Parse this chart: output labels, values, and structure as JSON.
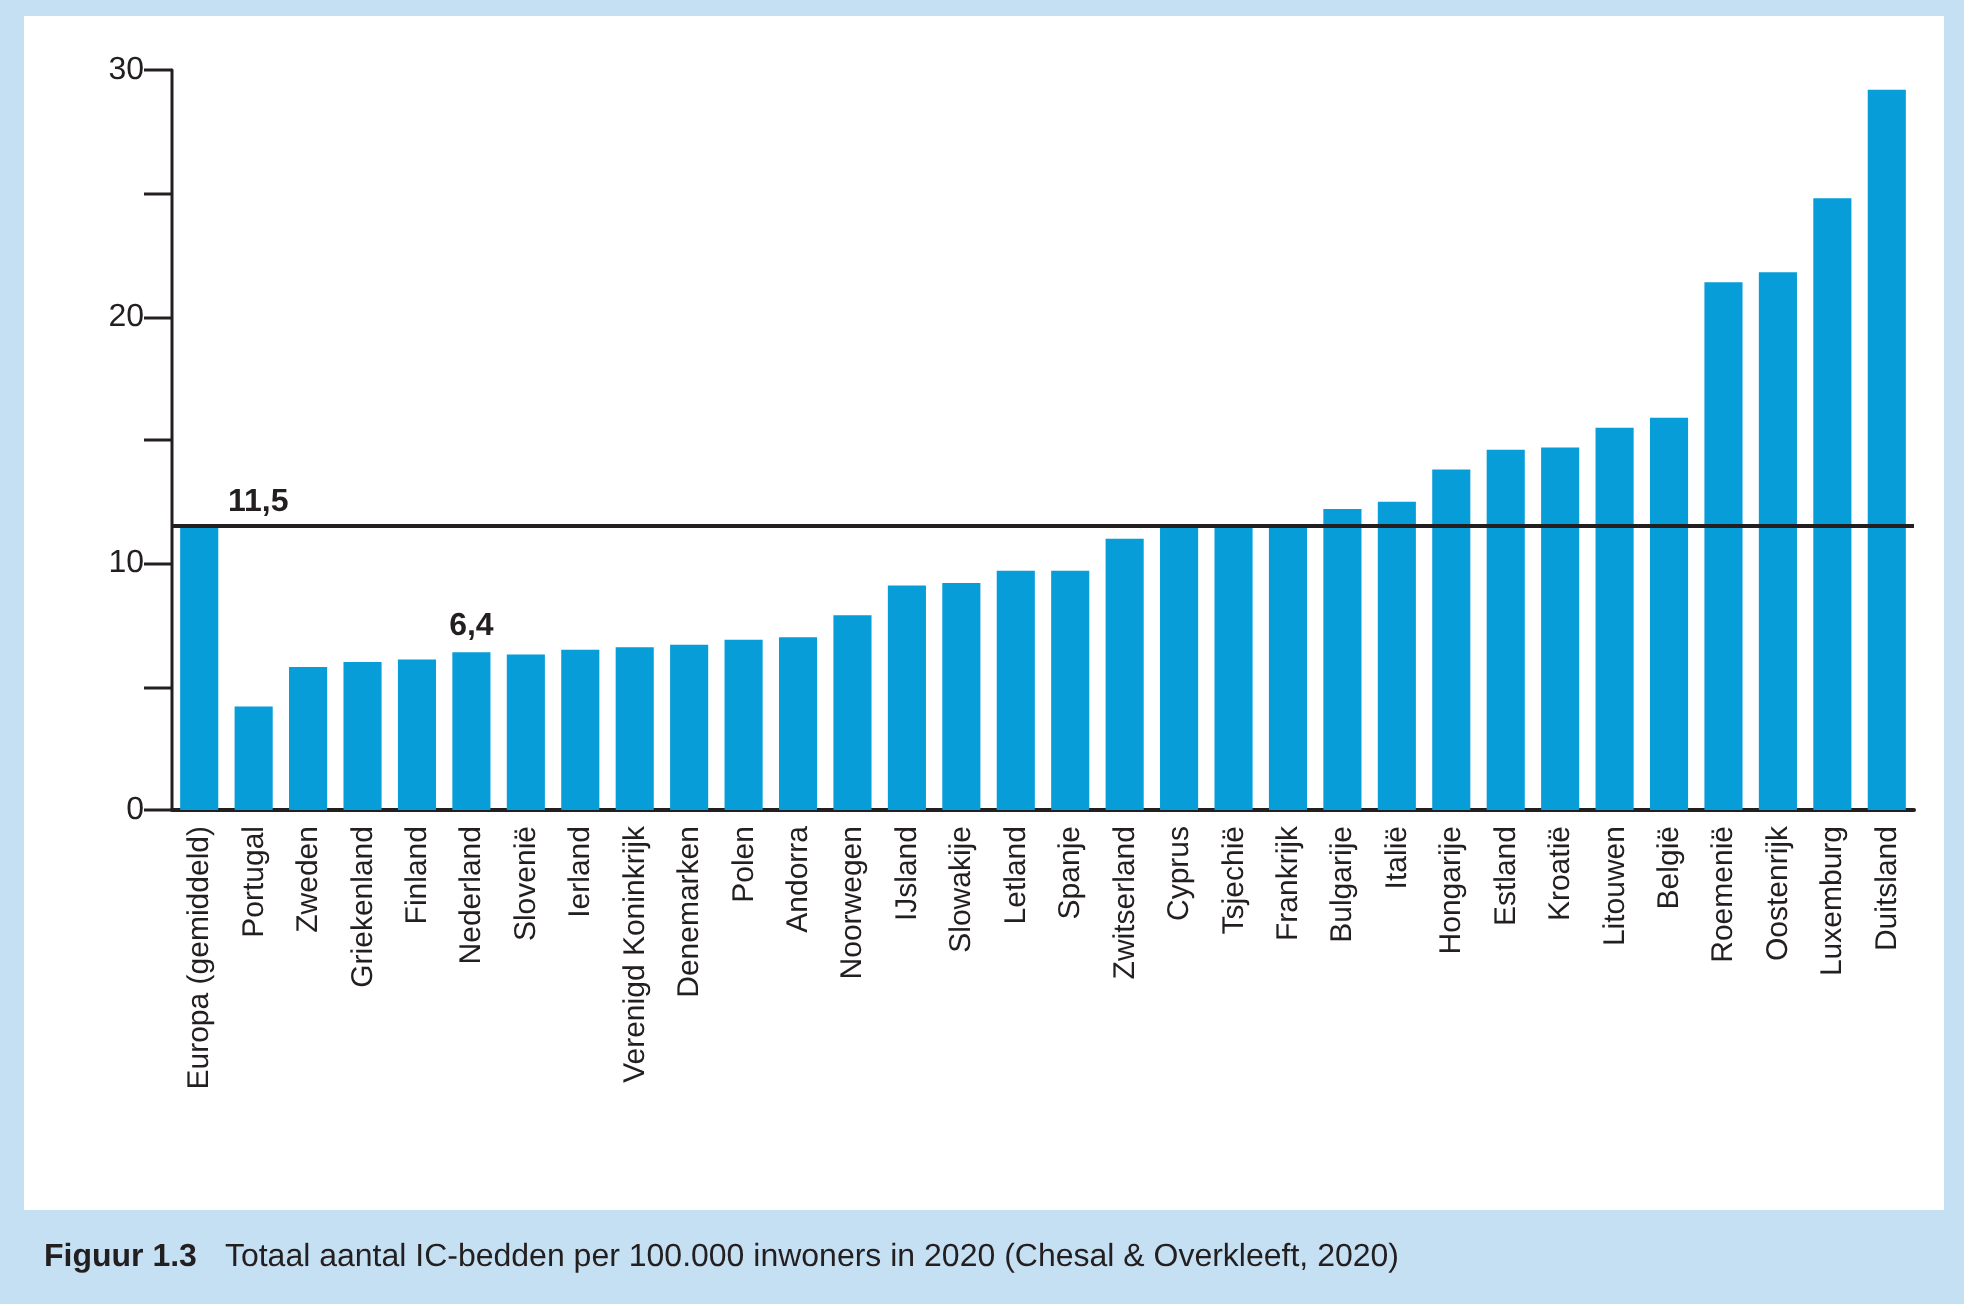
{
  "chart_data": {
    "type": "bar",
    "categories": [
      "Europa (gemiddeld)",
      "Portugal",
      "Zweden",
      "Griekenland",
      "Finland",
      "Nederland",
      "Slovenië",
      "Ierland",
      "Verenigd Koninkrijk",
      "Denemarken",
      "Polen",
      "Andorra",
      "Noorwegen",
      "IJsland",
      "Slowakije",
      "Letland",
      "Spanje",
      "Zwitserland",
      "Cyprus",
      "Tsjechië",
      "Frankrijk",
      "Bulgarije",
      "Italië",
      "Hongarije",
      "Estland",
      "Kroatië",
      "Litouwen",
      "België",
      "Roemenië",
      "Oostenrijk",
      "Luxemburg",
      "Duitsland"
    ],
    "values": [
      11.5,
      4.2,
      5.8,
      6.0,
      6.1,
      6.4,
      6.3,
      6.5,
      6.6,
      6.7,
      6.9,
      7.0,
      7.9,
      9.1,
      9.2,
      9.7,
      9.7,
      11.0,
      11.5,
      11.5,
      11.5,
      12.2,
      12.5,
      13.8,
      14.6,
      14.7,
      15.5,
      15.9,
      21.4,
      21.8,
      24.8,
      29.2
    ],
    "value_labels": [
      null,
      null,
      null,
      null,
      null,
      "6,4",
      null,
      null,
      null,
      null,
      null,
      null,
      null,
      null,
      null,
      null,
      null,
      null,
      null,
      null,
      null,
      null,
      null,
      null,
      null,
      null,
      null,
      null,
      null,
      null,
      null,
      null
    ],
    "color": "#069dd9",
    "ylim": [
      0,
      30
    ],
    "yticks": [
      0,
      {
        "value": 5,
        "label": null
      },
      10,
      {
        "value": 15,
        "label": null
      },
      20,
      {
        "value": 25,
        "label": null
      },
      30
    ],
    "ref_lines": [
      {
        "axis": "y",
        "value": 11.5,
        "label": "11,5",
        "color": "#231f20"
      }
    ],
    "grid": false,
    "annotations": [
      "Figuur 1.3",
      "Totaal aantal IC-bedden per 100.000 inwoners in 2020 (Chesal & Overkleeft, 2020)"
    ]
  }
}
